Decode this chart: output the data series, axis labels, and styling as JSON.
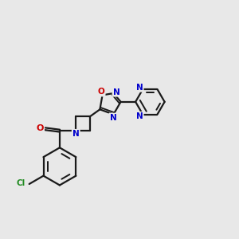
{
  "bg_color": "#e8e8e8",
  "bond_color": "#1a1a1a",
  "line_width": 1.6,
  "figsize": [
    3.0,
    3.0
  ],
  "dpi": 100,
  "colors": {
    "C": "#1a1a1a",
    "N": "#0000cc",
    "O": "#cc0000",
    "Cl": "#228B22"
  },
  "font_size": 7.5,
  "xlim": [
    0,
    10
  ],
  "ylim": [
    0,
    10
  ]
}
